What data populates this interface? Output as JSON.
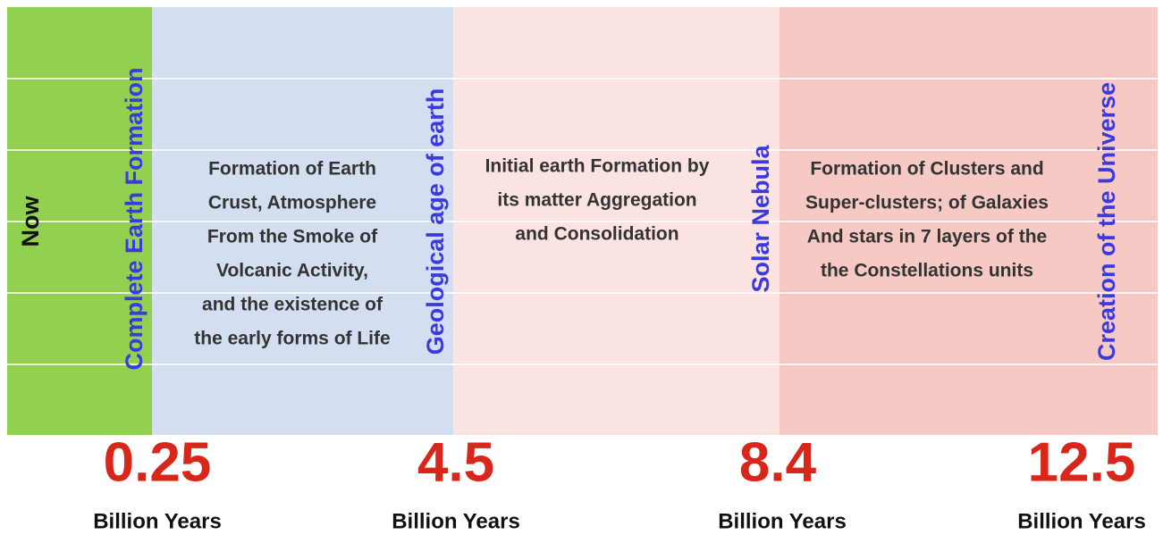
{
  "now": "Now",
  "boundaries": [
    {
      "label": "Complete Earth Formation",
      "value": 0.25,
      "unit": "Billion Years"
    },
    {
      "label": "Geological age of earth",
      "value": 4.5,
      "unit": "Billion Years"
    },
    {
      "label": "Solar Nebula",
      "value": 8.4,
      "unit": "Billion Years"
    },
    {
      "label": "Creation of the Universe",
      "value": 12.5,
      "unit": "Billion Years"
    }
  ],
  "periods": [
    {
      "lines": [
        "Formation of Earth",
        "Crust, Atmosphere",
        "From the Smoke of",
        "Volcanic Activity,",
        "and the existence of",
        "the early forms of Life"
      ]
    },
    {
      "lines": [
        "Initial earth Formation by",
        "its matter Aggregation",
        "and Consolidation"
      ]
    },
    {
      "lines": [
        "Formation of Clusters and",
        "Super-clusters; of Galaxies",
        "And stars in 7 layers of the",
        "the Constellations units"
      ]
    }
  ]
}
